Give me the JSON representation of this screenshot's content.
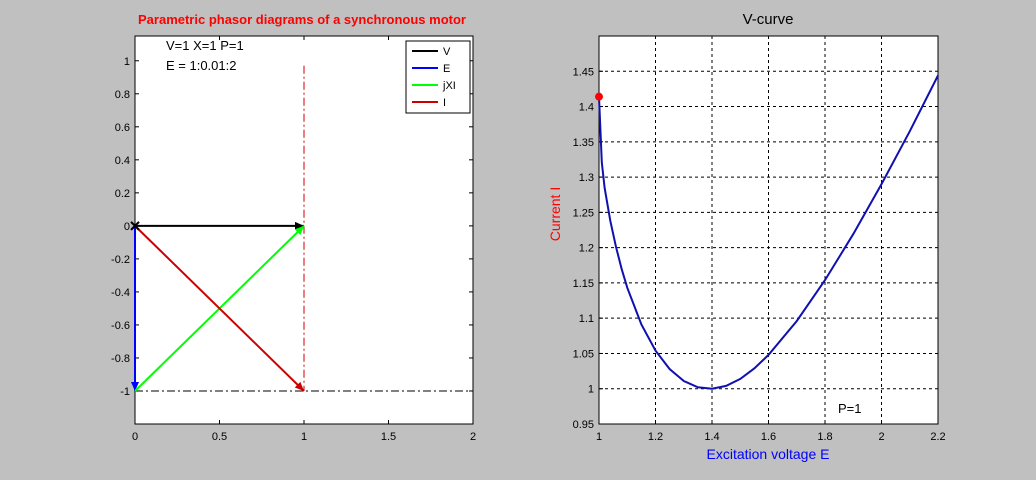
{
  "colors": {
    "background": "#c0c0c0",
    "V": "#000000",
    "E": "#0000ff",
    "jXI": "#00ff00",
    "I": "#cc0000",
    "curve": "#1010b0",
    "marker": "#ff0000",
    "title_left": "#ff0000",
    "ylabel_right": "#ff0000",
    "xlabel_right": "#0000ff"
  },
  "chart_data": [
    {
      "type": "line",
      "title": "Parametric phasor diagrams of a synchronous motor",
      "annotation_line1": "V=1  X=1  P=1",
      "annotation_line2": "E = 1:0.01:2",
      "xlim": [
        0,
        2
      ],
      "ylim": [
        -1.2,
        1.15
      ],
      "xticks": [
        0,
        0.5,
        1,
        1.5,
        2
      ],
      "xtick_labels": [
        "0",
        "0.5",
        "1",
        "1.5",
        "2"
      ],
      "yticks": [
        -1,
        -0.8,
        -0.6,
        -0.4,
        -0.2,
        0,
        0.2,
        0.4,
        0.6,
        0.8,
        1
      ],
      "ytick_labels": [
        "-1",
        "-0.8",
        "-0.6",
        "-0.4",
        "-0.2",
        "0",
        "0.2",
        "0.4",
        "0.6",
        "0.8",
        "1"
      ],
      "grid": false,
      "legend_position": "top-right",
      "series": [
        {
          "name": "V",
          "color_key": "V",
          "from": [
            0,
            0
          ],
          "to": [
            1,
            0
          ]
        },
        {
          "name": "E",
          "color_key": "E",
          "from": [
            0,
            0
          ],
          "to": [
            0,
            -1
          ]
        },
        {
          "name": "jXI",
          "color_key": "jXI",
          "from": [
            0,
            -1
          ],
          "to": [
            1,
            0
          ]
        },
        {
          "name": "I",
          "color_key": "I",
          "from": [
            0,
            0
          ],
          "to": [
            1,
            -1
          ]
        }
      ],
      "loci": [
        {
          "from": [
            1,
            0.97
          ],
          "to": [
            1,
            -1
          ]
        },
        {
          "from": [
            0,
            -1
          ],
          "to": [
            2,
            -1
          ]
        }
      ]
    },
    {
      "type": "line",
      "title": "V-curve",
      "xlabel": "Excitation voltage E",
      "ylabel": "Current I",
      "xlim": [
        1,
        2.2
      ],
      "ylim": [
        0.95,
        1.5
      ],
      "xticks": [
        1,
        1.2,
        1.4,
        1.6,
        1.8,
        2,
        2.2
      ],
      "xtick_labels": [
        "1",
        "1.2",
        "1.4",
        "1.6",
        "1.8",
        "2",
        "2.2"
      ],
      "yticks": [
        0.95,
        1,
        1.05,
        1.1,
        1.15,
        1.2,
        1.25,
        1.3,
        1.35,
        1.4,
        1.45
      ],
      "ytick_labels": [
        "0.95",
        "1",
        "1.05",
        "1.1",
        "1.15",
        "1.2",
        "1.25",
        "1.3",
        "1.35",
        "1.4",
        "1.45"
      ],
      "grid": true,
      "annotation": "P=1",
      "x": [
        1,
        1.01,
        1.02,
        1.04,
        1.06,
        1.08,
        1.1,
        1.15,
        1.2,
        1.25,
        1.3,
        1.35,
        1.4,
        1.45,
        1.5,
        1.55,
        1.6,
        1.7,
        1.8,
        1.9,
        2,
        2.1,
        2.2
      ],
      "y": [
        1.414,
        1.321,
        1.285,
        1.238,
        1.201,
        1.17,
        1.143,
        1.091,
        1.054,
        1.028,
        1.011,
        1.002,
        1.0,
        1.004,
        1.014,
        1.029,
        1.048,
        1.096,
        1.154,
        1.219,
        1.29,
        1.365,
        1.444
      ],
      "marker": {
        "x": 1,
        "y": 1.414
      }
    }
  ]
}
